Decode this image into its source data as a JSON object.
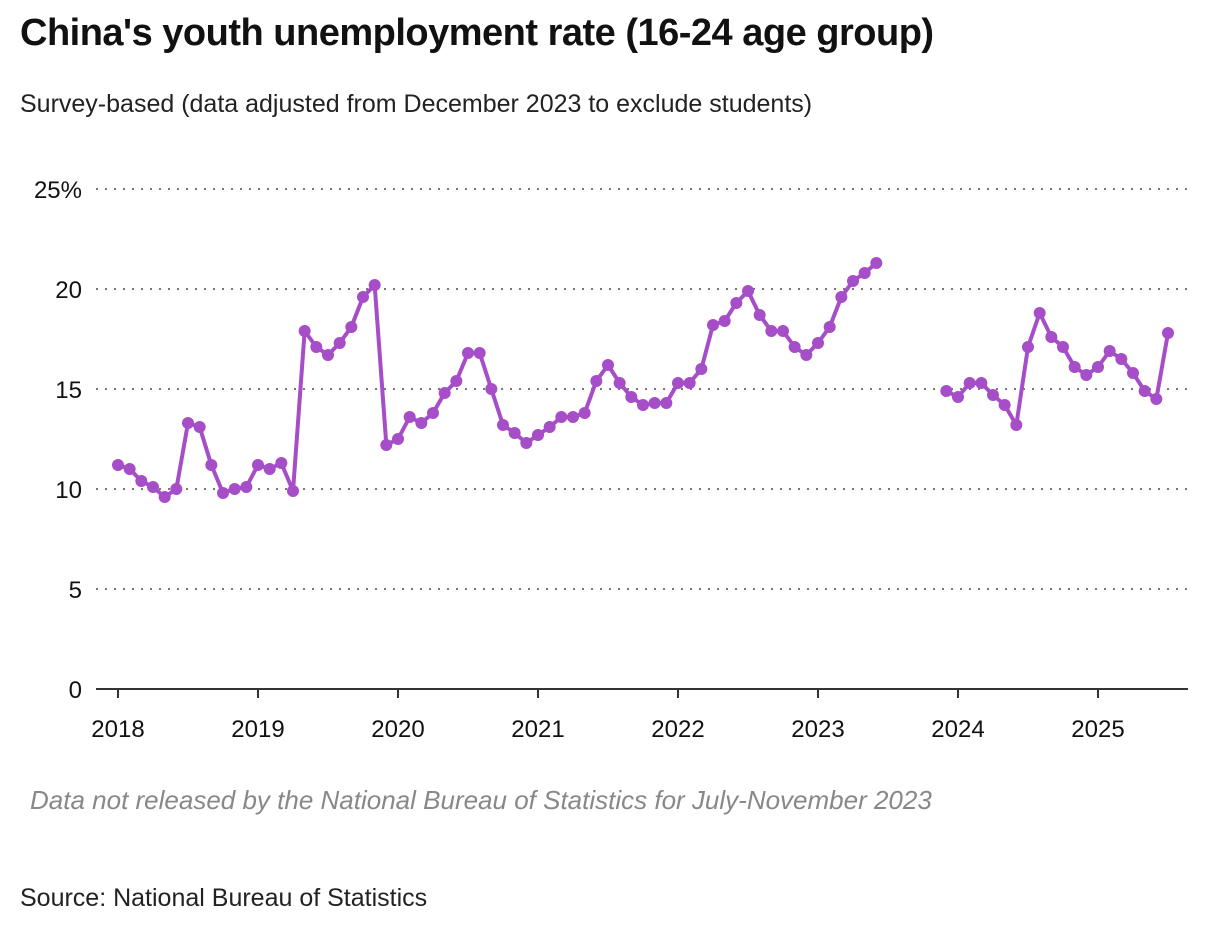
{
  "chart_data": {
    "type": "line",
    "title": "China's youth unemployment rate (16-24 age group)",
    "subtitle": "Survey-based (data adjusted from December 2023 to exclude students)",
    "note": "Data not released by the National Bureau of Statistics for July-November 2023",
    "source": "Source: National Bureau of Statistics",
    "xlabel": "",
    "ylabel": "",
    "ylim": [
      0,
      25
    ],
    "yticks": [
      0,
      5,
      10,
      15,
      20,
      25
    ],
    "ytick_labels": [
      "0",
      "5",
      "10",
      "15",
      "20",
      "25%"
    ],
    "xticks": [
      "2018",
      "2019",
      "2020",
      "2021",
      "2022",
      "2023",
      "2024",
      "2025"
    ],
    "grid": true,
    "color": "#a64dc8",
    "start": "2018-01",
    "frequency": "monthly",
    "series": [
      {
        "name": "Youth unemployment rate (%)",
        "values": [
          11.2,
          11.0,
          10.4,
          10.1,
          9.6,
          10.0,
          13.3,
          13.1,
          11.2,
          9.8,
          10.0,
          10.1,
          11.2,
          11.0,
          11.3,
          9.9,
          17.9,
          17.1,
          16.7,
          17.3,
          18.1,
          19.6,
          20.2,
          12.2,
          12.5,
          13.6,
          13.3,
          13.8,
          14.8,
          15.4,
          16.8,
          16.8,
          15.0,
          13.2,
          12.8,
          12.3,
          12.7,
          13.1,
          13.6,
          13.6,
          13.8,
          15.4,
          16.2,
          15.3,
          14.6,
          14.2,
          14.3,
          14.3,
          15.3,
          15.3,
          16.0,
          18.2,
          18.4,
          19.3,
          19.9,
          18.7,
          17.9,
          17.9,
          17.1,
          16.7,
          17.3,
          18.1,
          19.6,
          20.4,
          20.8,
          21.3,
          null,
          null,
          null,
          null,
          null,
          14.9,
          14.6,
          15.3,
          15.3,
          14.7,
          14.2,
          13.2,
          17.1,
          18.8,
          17.6,
          17.1,
          16.1,
          15.7,
          16.1,
          16.9,
          16.5,
          15.8,
          14.9,
          14.5,
          17.8
        ]
      }
    ]
  }
}
